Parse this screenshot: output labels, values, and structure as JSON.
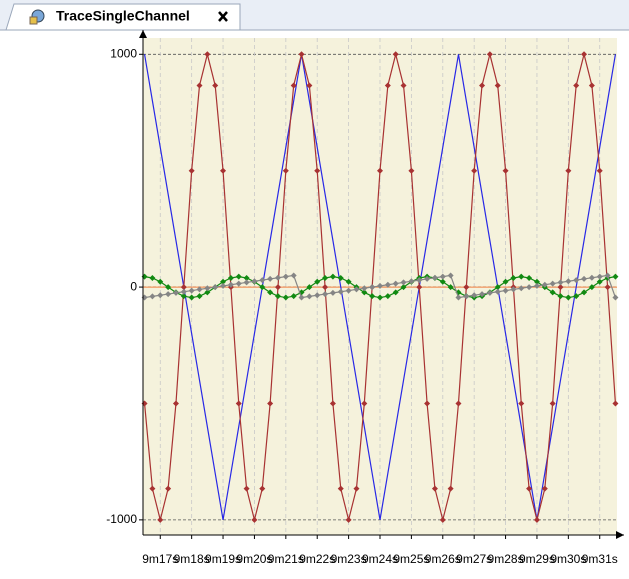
{
  "tab": {
    "title": "TraceSingleChannel"
  },
  "chart_data": {
    "type": "line",
    "x": [
      556.5,
      556.75,
      557,
      557.25,
      557.5,
      557.75,
      558,
      558.25,
      558.5,
      558.75,
      559,
      559.25,
      559.5,
      559.75,
      560,
      560.25,
      560.5,
      560.75,
      561,
      561.25,
      561.5,
      561.75,
      562,
      562.25,
      562.5,
      562.75,
      563,
      563.25,
      563.5,
      563.75,
      564,
      564.25,
      564.5,
      564.75,
      565,
      565.25,
      565.5,
      565.75,
      566,
      566.25,
      566.5,
      566.75,
      567,
      567.25,
      567.5,
      567.75,
      568,
      568.25,
      568.5,
      568.75,
      569,
      569.25,
      569.5,
      569.75,
      570,
      570.25,
      570.5,
      570.75,
      571,
      571.25,
      571.5
    ],
    "series": [
      {
        "color": "#2828e6",
        "markers": false,
        "values": [
          1000,
          800,
          600,
          400,
          200,
          0,
          -200,
          -400,
          -600,
          -800,
          -1000,
          -800,
          -600,
          -400,
          -200,
          0,
          200,
          400,
          600,
          800,
          1000,
          800,
          600,
          400,
          200,
          0,
          -200,
          -400,
          -600,
          -800,
          -1000,
          -800,
          -600,
          -400,
          -200,
          0,
          200,
          400,
          600,
          800,
          1000,
          800,
          600,
          400,
          200,
          0,
          -200,
          -400,
          -600,
          -800,
          -1000,
          -800,
          -600,
          -400,
          -200,
          0,
          200,
          400,
          600,
          800,
          1000
        ]
      },
      {
        "color": "#a83232",
        "markers": true,
        "values": [
          -500,
          -866,
          -1000,
          -866,
          -500,
          0,
          500,
          866,
          1000,
          866,
          500,
          0,
          -500,
          -866,
          -1000,
          -866,
          -500,
          0,
          500,
          866,
          1000,
          866,
          500,
          0,
          -500,
          -866,
          -1000,
          -866,
          -500,
          0,
          500,
          866,
          1000,
          866,
          500,
          0,
          -500,
          -866,
          -1000,
          -866,
          -500,
          0,
          500,
          866,
          1000,
          866,
          500,
          0,
          -500,
          -866,
          -1000,
          -866,
          -500,
          0,
          500,
          866,
          1000,
          866,
          500,
          0,
          -500
        ]
      },
      {
        "color": "#118a11",
        "markers": true,
        "values": [
          45,
          39,
          23,
          0,
          -23,
          -39,
          -45,
          -39,
          -23,
          0,
          23,
          39,
          45,
          39,
          23,
          0,
          -23,
          -39,
          -45,
          -39,
          -23,
          0,
          23,
          39,
          45,
          39,
          23,
          0,
          -23,
          -39,
          -45,
          -39,
          -23,
          0,
          23,
          39,
          45,
          39,
          23,
          0,
          -23,
          -39,
          -45,
          -39,
          -23,
          0,
          23,
          39,
          45,
          39,
          23,
          0,
          -23,
          -39,
          -45,
          -39,
          -23,
          0,
          23,
          39,
          45
        ]
      },
      {
        "color": "#858585",
        "markers": true,
        "values": [
          -45,
          -40,
          -35,
          -30,
          -25,
          -20,
          -15,
          -10,
          -5,
          0,
          5,
          10,
          15,
          20,
          25,
          30,
          35,
          40,
          45,
          50,
          -45,
          -40,
          -35,
          -30,
          -25,
          -20,
          -15,
          -10,
          -5,
          0,
          5,
          10,
          15,
          20,
          25,
          30,
          35,
          40,
          45,
          50,
          -45,
          -40,
          -35,
          -30,
          -25,
          -20,
          -15,
          -10,
          -5,
          0,
          5,
          10,
          15,
          20,
          25,
          30,
          35,
          40,
          45,
          50,
          -45
        ]
      }
    ],
    "xlim": [
      556.45,
      571.55
    ],
    "xticks": [
      {
        "value": 557,
        "label": "9m17s"
      },
      {
        "value": 558,
        "label": "9m18s"
      },
      {
        "value": 559,
        "label": "9m19s"
      },
      {
        "value": 560,
        "label": "9m20s"
      },
      {
        "value": 561,
        "label": "9m21s"
      },
      {
        "value": 562,
        "label": "9m22s"
      },
      {
        "value": 563,
        "label": "9m23s"
      },
      {
        "value": 564,
        "label": "9m24s"
      },
      {
        "value": 565,
        "label": "9m25s"
      },
      {
        "value": 566,
        "label": "9m26s"
      },
      {
        "value": 567,
        "label": "9m27s"
      },
      {
        "value": 568,
        "label": "9m28s"
      },
      {
        "value": 569,
        "label": "9m29s"
      },
      {
        "value": 570,
        "label": "9m30s"
      },
      {
        "value": 571,
        "label": "9m31s"
      }
    ],
    "ylim": [
      -1065,
      1070
    ],
    "yticks": [
      -1000,
      0,
      1000
    ],
    "grid": true
  }
}
